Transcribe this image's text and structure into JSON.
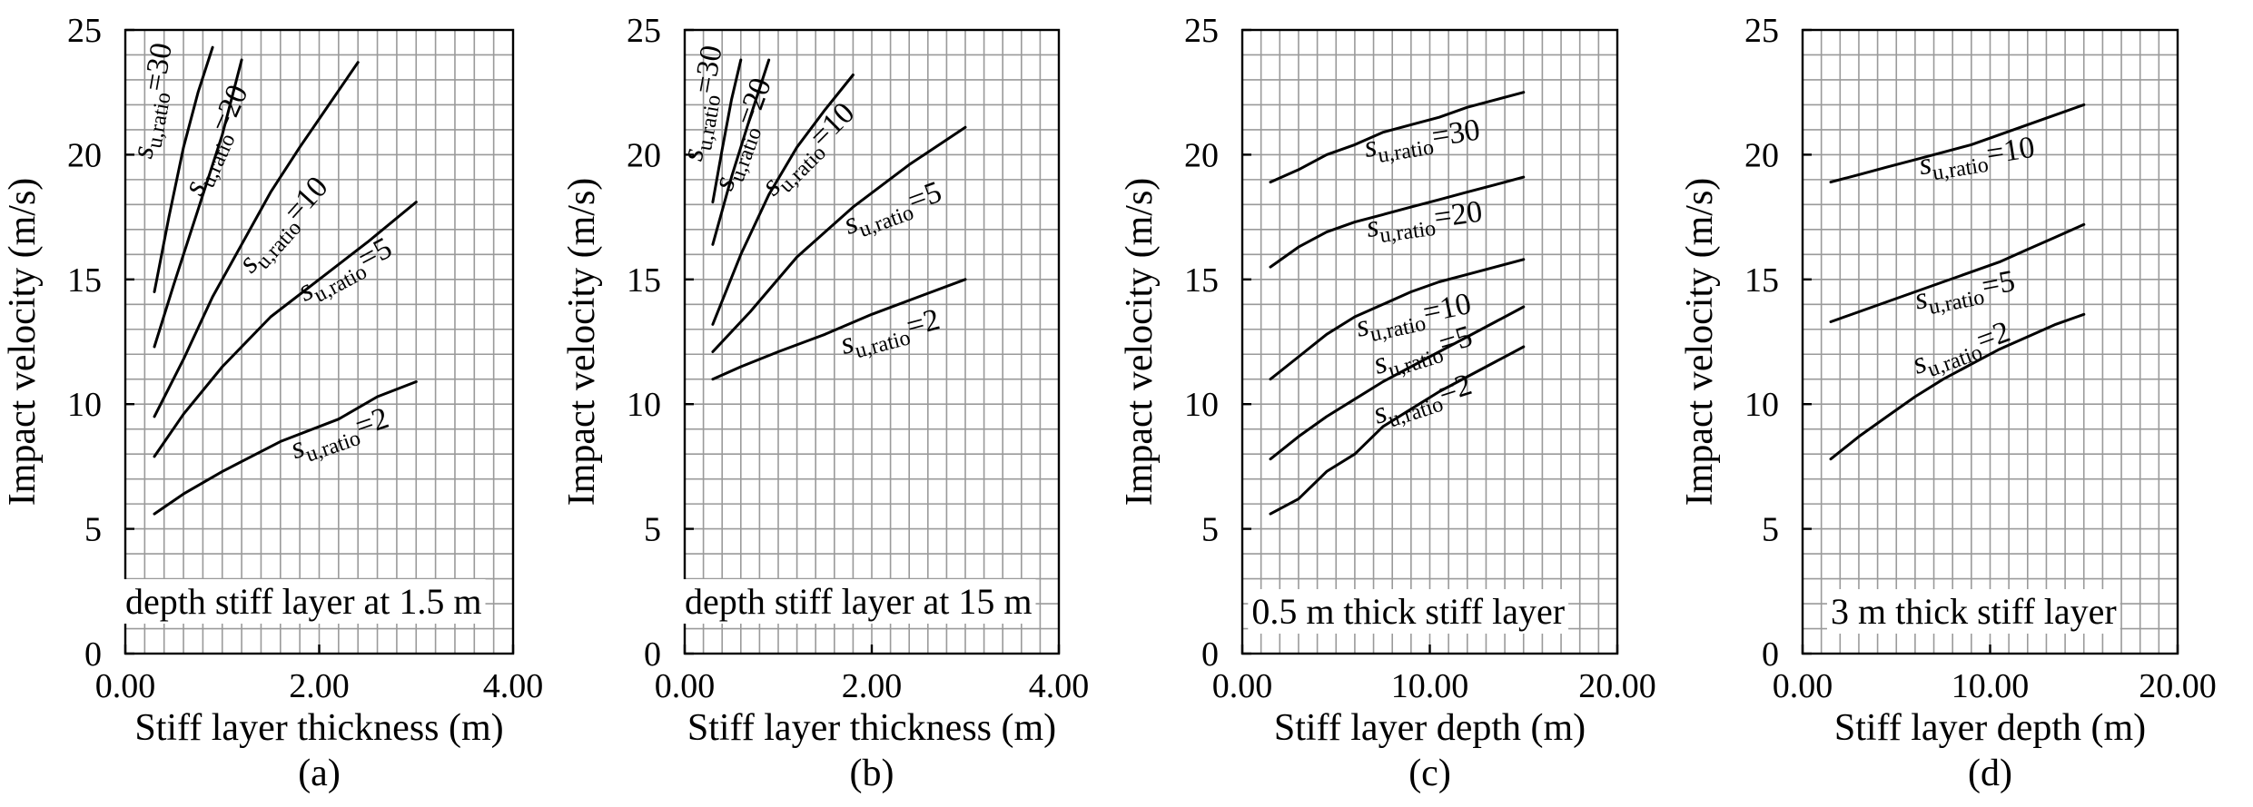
{
  "chart_data": [
    {
      "type": "line",
      "panel_label": "(a)",
      "annotation": "depth stiff layer at 1.5 m",
      "xlabel": "Stiff layer thickness (m)",
      "ylabel": "Impact velocity (m/s)",
      "xlim": [
        0,
        4
      ],
      "ylim": [
        0,
        25
      ],
      "x_ticks": [
        0,
        2,
        4
      ],
      "x_tick_labels": [
        "0.00",
        "2.00",
        "4.00"
      ],
      "y_ticks": [
        0,
        5,
        10,
        15,
        20,
        25
      ],
      "y_tick_labels": [
        "0",
        "5",
        "10",
        "15",
        "20",
        "25"
      ],
      "grid": true,
      "series": [
        {
          "label_main": "s",
          "label_sub": "u,ratio",
          "label_value": "=30",
          "x": [
            0.3,
            0.45,
            0.6,
            0.75,
            0.9
          ],
          "y": [
            14.5,
            17.5,
            20.3,
            22.5,
            24.3
          ]
        },
        {
          "label_main": "s",
          "label_sub": "u,ratio",
          "label_value": "=20",
          "x": [
            0.3,
            0.5,
            0.75,
            1.0,
            1.2
          ],
          "y": [
            12.3,
            14.8,
            17.8,
            20.8,
            23.8
          ]
        },
        {
          "label_main": "s",
          "label_sub": "u,ratio",
          "label_value": "=10",
          "x": [
            0.3,
            0.6,
            0.9,
            1.2,
            1.5,
            1.8,
            2.1,
            2.4
          ],
          "y": [
            9.5,
            11.8,
            14.3,
            16.4,
            18.5,
            20.3,
            22.0,
            23.7
          ]
        },
        {
          "label_main": "s",
          "label_sub": "u,ratio",
          "label_value": "=5",
          "x": [
            0.3,
            0.6,
            1.0,
            1.5,
            2.0,
            2.5,
            3.0
          ],
          "y": [
            7.9,
            9.6,
            11.5,
            13.5,
            15.0,
            16.5,
            18.1
          ]
        },
        {
          "label_main": "s",
          "label_sub": "u,ratio",
          "label_value": "=2",
          "x": [
            0.3,
            0.6,
            1.0,
            1.6,
            2.2,
            2.6,
            3.0
          ],
          "y": [
            5.6,
            6.4,
            7.3,
            8.5,
            9.4,
            10.3,
            10.9
          ]
        }
      ]
    },
    {
      "type": "line",
      "panel_label": "(b)",
      "annotation": "depth stiff layer at 15 m",
      "xlabel": "Stiff layer thickness (m)",
      "ylabel": "Impact velocity (m/s)",
      "xlim": [
        0,
        4
      ],
      "ylim": [
        0,
        25
      ],
      "x_ticks": [
        0,
        2,
        4
      ],
      "x_tick_labels": [
        "0.00",
        "2.00",
        "4.00"
      ],
      "y_ticks": [
        0,
        5,
        10,
        15,
        20,
        25
      ],
      "y_tick_labels": [
        "0",
        "5",
        "10",
        "15",
        "20",
        "25"
      ],
      "grid": true,
      "series": [
        {
          "label_main": "s",
          "label_sub": "u,ratio",
          "label_value": "=30",
          "x": [
            0.3,
            0.4,
            0.5,
            0.6
          ],
          "y": [
            18.1,
            20.2,
            22.2,
            23.8
          ]
        },
        {
          "label_main": "s",
          "label_sub": "u,ratio",
          "label_value": "=20",
          "x": [
            0.3,
            0.5,
            0.7,
            0.9
          ],
          "y": [
            16.4,
            19.1,
            21.5,
            23.8
          ]
        },
        {
          "label_main": "s",
          "label_sub": "u,ratio",
          "label_value": "=10",
          "x": [
            0.3,
            0.6,
            0.9,
            1.2,
            1.5,
            1.8
          ],
          "y": [
            13.2,
            16.0,
            18.4,
            20.3,
            21.8,
            23.2
          ]
        },
        {
          "label_main": "s",
          "label_sub": "u,ratio",
          "label_value": "=5",
          "x": [
            0.3,
            0.7,
            1.2,
            1.8,
            2.4,
            3.0
          ],
          "y": [
            12.1,
            13.7,
            15.9,
            17.9,
            19.6,
            21.1
          ]
        },
        {
          "label_main": "s",
          "label_sub": "u,ratio",
          "label_value": "=2",
          "x": [
            0.3,
            0.6,
            1.0,
            1.5,
            2.0,
            2.5,
            3.0
          ],
          "y": [
            11.0,
            11.5,
            12.1,
            12.8,
            13.6,
            14.3,
            15.0
          ]
        }
      ]
    },
    {
      "type": "line",
      "panel_label": "(c)",
      "annotation": "0.5 m thick stiff layer",
      "xlabel": "Stiff layer depth (m)",
      "ylabel": "Impact velocity (m/s)",
      "xlim": [
        0,
        20
      ],
      "ylim": [
        0,
        25
      ],
      "x_ticks": [
        0,
        10,
        20
      ],
      "x_tick_labels": [
        "0.00",
        "10.00",
        "20.00"
      ],
      "y_ticks": [
        0,
        5,
        10,
        15,
        20,
        25
      ],
      "y_tick_labels": [
        "0",
        "5",
        "10",
        "15",
        "20",
        "25"
      ],
      "grid": true,
      "series": [
        {
          "label_main": "s",
          "label_sub": "u,ratio",
          "label_value": "=30",
          "x": [
            1.5,
            3,
            4.5,
            6,
            7.5,
            9,
            10.5,
            12,
            13.5,
            15
          ],
          "y": [
            18.9,
            19.4,
            20.0,
            20.4,
            20.9,
            21.2,
            21.5,
            21.9,
            22.2,
            22.5
          ]
        },
        {
          "label_main": "s",
          "label_sub": "u,ratio",
          "label_value": "=20",
          "x": [
            1.5,
            3,
            4.5,
            6,
            7.5,
            9,
            10.5,
            12,
            13.5,
            15
          ],
          "y": [
            15.5,
            16.3,
            16.9,
            17.3,
            17.6,
            17.9,
            18.2,
            18.5,
            18.8,
            19.1
          ]
        },
        {
          "label_main": "s",
          "label_sub": "u,ratio",
          "label_value": "=10",
          "x": [
            1.5,
            3,
            4.5,
            6,
            7.5,
            9,
            10.5,
            12,
            13.5,
            15
          ],
          "y": [
            11.0,
            11.9,
            12.8,
            13.5,
            14.0,
            14.5,
            14.9,
            15.2,
            15.5,
            15.8
          ]
        },
        {
          "label_main": "s",
          "label_sub": "u,ratio",
          "label_value": "=5",
          "x": [
            1.5,
            3,
            4.5,
            6,
            7.5,
            9,
            10.5,
            12,
            13.5,
            15
          ],
          "y": [
            7.8,
            8.7,
            9.5,
            10.2,
            10.9,
            11.5,
            12.1,
            12.7,
            13.3,
            13.9
          ]
        },
        {
          "label_main": "s",
          "label_sub": "u,ratio",
          "label_value": "=2",
          "x": [
            1.5,
            3,
            4.5,
            6,
            7.5,
            9,
            10.5,
            12,
            13.5,
            15
          ],
          "y": [
            5.6,
            6.2,
            7.3,
            8.0,
            9.1,
            9.8,
            10.5,
            11.1,
            11.7,
            12.3
          ]
        }
      ]
    },
    {
      "type": "line",
      "panel_label": "(d)",
      "annotation": "3 m thick stiff layer",
      "xlabel": "Stiff layer depth (m)",
      "ylabel": "Impact velocity (m/s)",
      "xlim": [
        0,
        20
      ],
      "ylim": [
        0,
        25
      ],
      "x_ticks": [
        0,
        10,
        20
      ],
      "x_tick_labels": [
        "0.00",
        "10.00",
        "20.00"
      ],
      "y_ticks": [
        0,
        5,
        10,
        15,
        20,
        25
      ],
      "y_tick_labels": [
        "0",
        "5",
        "10",
        "15",
        "20",
        "25"
      ],
      "grid": true,
      "series": [
        {
          "label_main": "s",
          "label_sub": "u,ratio",
          "label_value": "=10",
          "x": [
            1.5,
            3,
            4.5,
            6,
            7.5,
            9,
            10.5,
            12,
            13.5,
            15
          ],
          "y": [
            18.9,
            19.2,
            19.5,
            19.8,
            20.1,
            20.4,
            20.8,
            21.2,
            21.6,
            22.0
          ]
        },
        {
          "label_main": "s",
          "label_sub": "u,ratio",
          "label_value": "=5",
          "x": [
            1.5,
            3,
            4.5,
            6,
            7.5,
            9,
            10.5,
            12,
            13.5,
            15
          ],
          "y": [
            13.3,
            13.7,
            14.1,
            14.5,
            14.9,
            15.3,
            15.7,
            16.2,
            16.7,
            17.2
          ]
        },
        {
          "label_main": "s",
          "label_sub": "u,ratio",
          "label_value": "=2",
          "x": [
            1.5,
            3,
            4.5,
            6,
            7.5,
            9,
            10.5,
            12,
            13.5,
            15
          ],
          "y": [
            7.8,
            8.7,
            9.5,
            10.3,
            11.0,
            11.6,
            12.2,
            12.7,
            13.2,
            13.6
          ]
        }
      ]
    }
  ]
}
